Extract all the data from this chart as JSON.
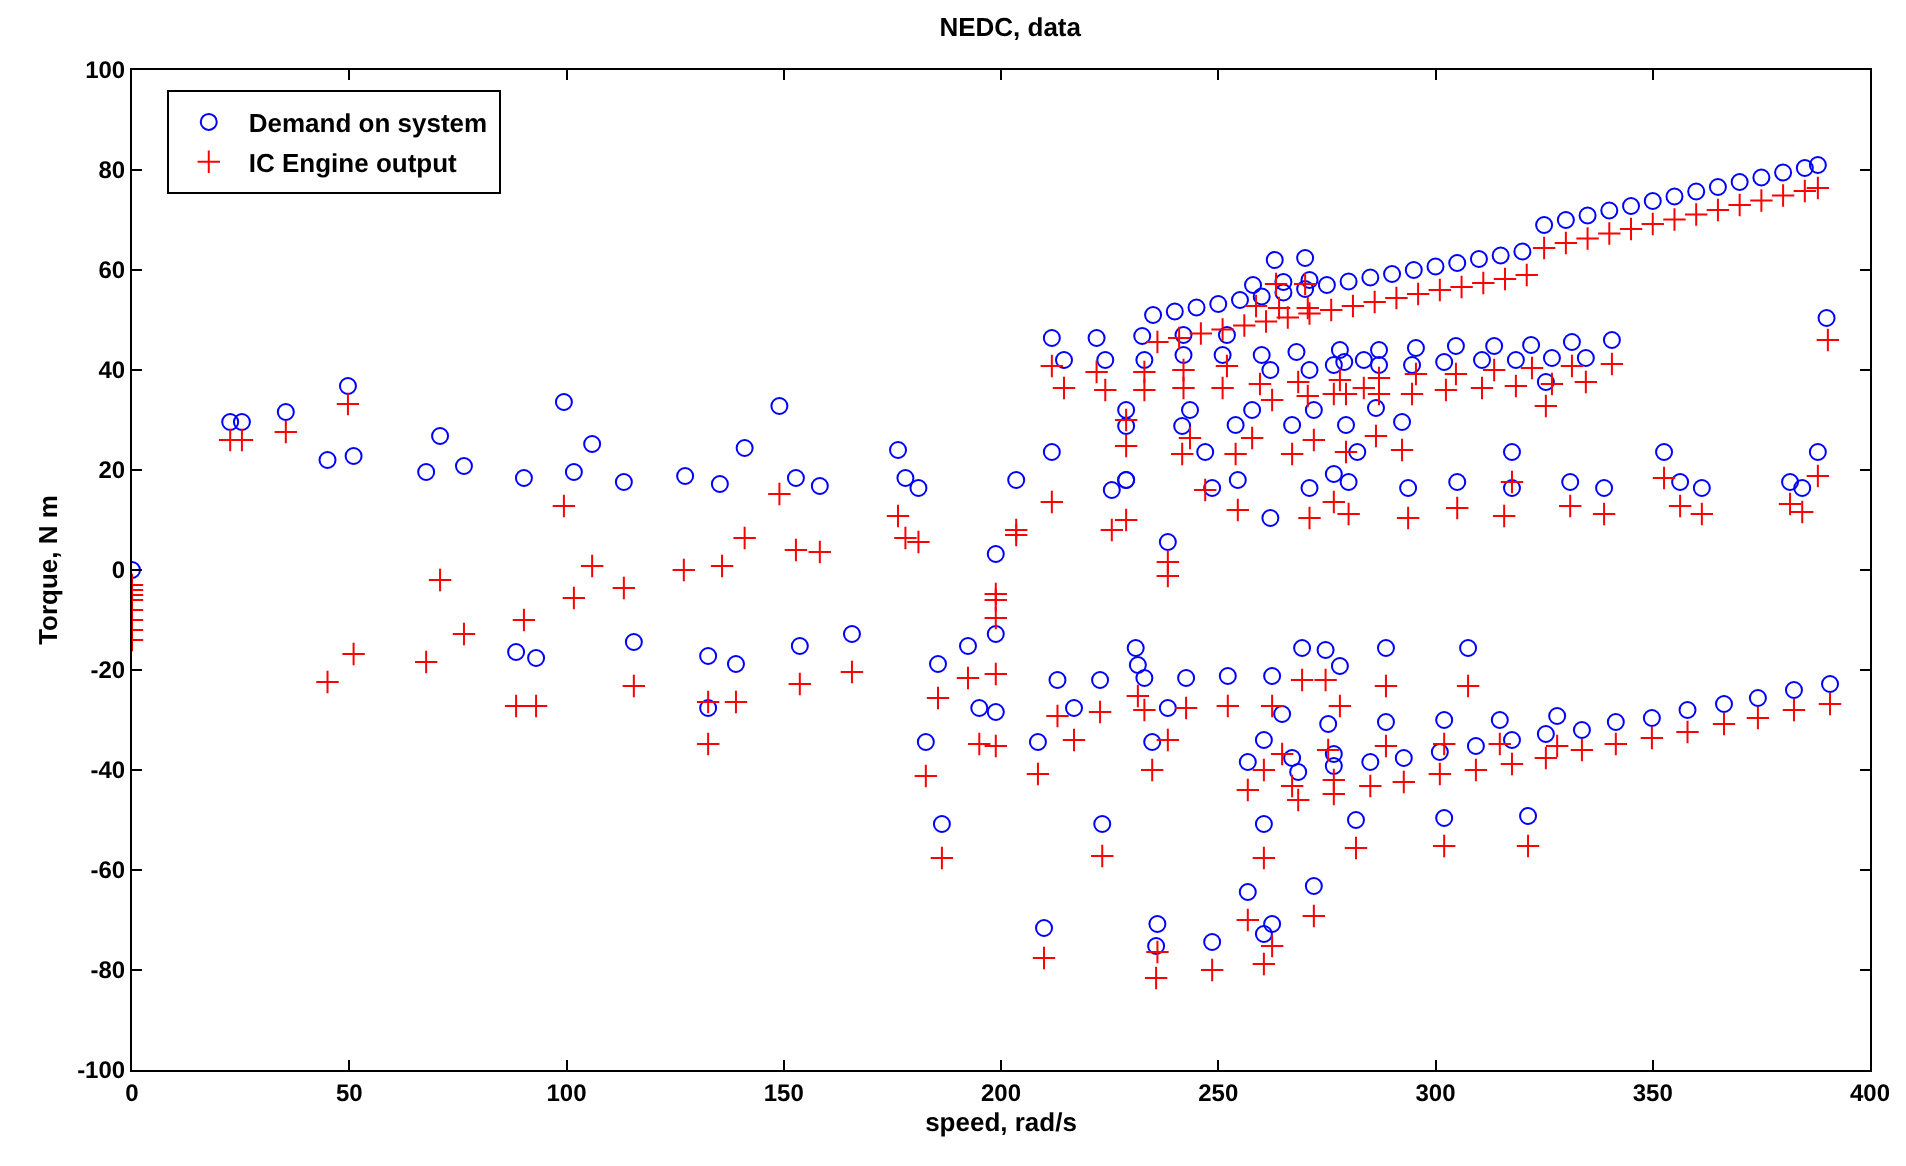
{
  "chart_data": {
    "type": "scatter",
    "title": "NEDC, data",
    "xlabel": "speed, rad/s",
    "ylabel": "Torque, N m",
    "xlim": [
      0,
      400
    ],
    "xticks": [
      0,
      50,
      100,
      150,
      200,
      250,
      300,
      350,
      400
    ],
    "ylim": [
      -100,
      100
    ],
    "yticks": [
      -100,
      -80,
      -60,
      -40,
      -20,
      0,
      20,
      40,
      60,
      80,
      100
    ],
    "grid": false,
    "legend": "top left",
    "series": [
      {
        "name": "Demand on system",
        "color": "#0000ff",
        "marker": "circle",
        "x": [
          0,
          22.6,
          25.3,
          35.4,
          49.7,
          45,
          51,
          70.9,
          67.7,
          76.4,
          90.2,
          99.4,
          101.7,
          105.9,
          113.2,
          127.3,
          135.3,
          141,
          149,
          152.8,
          158.3,
          176.3,
          178,
          181,
          198.8,
          203.5,
          211.7,
          211.7,
          214.5,
          222,
          224,
          225.5,
          228.8,
          228.8,
          228.8,
          228.8,
          238.4,
          241.7,
          243.5,
          247,
          248.6,
          254,
          254.5,
          257.8,
          262,
          267,
          271,
          272,
          276.6,
          279.4,
          280,
          282,
          286.3,
          292.3,
          293.7,
          305,
          317.6,
          317.6,
          331,
          338.8,
          352.6,
          356.3,
          361.3,
          381.6,
          384.4,
          388,
          232.5,
          233,
          242,
          242,
          251,
          252,
          260,
          262,
          268,
          271,
          276.6,
          278,
          279,
          283.5,
          287,
          287,
          294.6,
          295.5,
          302,
          304.7,
          310.7,
          313.5,
          318.5,
          322,
          325.4,
          326.8,
          331.4,
          334.6,
          340.6,
          390,
          258,
          263,
          265,
          270,
          271,
          235,
          240,
          245,
          250,
          255,
          260,
          265,
          270,
          275,
          280,
          285,
          290,
          295,
          300,
          305,
          310,
          315,
          320,
          325,
          330,
          335,
          340,
          345,
          350,
          355,
          360,
          365,
          370,
          375,
          380,
          385,
          388,
          88.4,
          93,
          115.5,
          132.6,
          132.6,
          139,
          153.7,
          165.7,
          182.7,
          185.5,
          186.4,
          192.4,
          195,
          198.8,
          198.8,
          208.5,
          209.9,
          213,
          216.8,
          222.8,
          223.3,
          231,
          231.5,
          233,
          234.8,
          235.7,
          236,
          238.4,
          242.6,
          248.6,
          252.2,
          256.8,
          256.8,
          260.5,
          260.5,
          260.5,
          262.4,
          262.4,
          264.7,
          267,
          268.4,
          269.3,
          272,
          274.7,
          275.3,
          276.6,
          276.6,
          278,
          281.7,
          285,
          288.6,
          288.6,
          292.7,
          301,
          302,
          302,
          307.5,
          309.3,
          314.8,
          317.6,
          321.3,
          325.4,
          328,
          333.7,
          341.5,
          349.8,
          358,
          366.4,
          374.2,
          382.5,
          390.8
        ],
        "values": [
          0,
          29.6,
          29.6,
          31.6,
          36.8,
          22,
          22.8,
          26.8,
          19.6,
          20.8,
          18.4,
          33.6,
          19.6,
          25.2,
          17.6,
          18.8,
          17.2,
          24.4,
          32.8,
          18.4,
          16.8,
          24,
          18.4,
          16.4,
          3.2,
          18,
          23.6,
          46.4,
          42,
          46.4,
          42,
          16,
          32,
          28.8,
          18,
          18,
          5.6,
          28.8,
          32,
          23.6,
          16.4,
          29,
          18,
          32,
          10.4,
          29,
          16.4,
          32,
          19.2,
          29,
          17.6,
          23.6,
          32.4,
          29.6,
          16.4,
          17.6,
          23.6,
          16.4,
          17.6,
          16.4,
          23.6,
          17.6,
          16.4,
          17.6,
          16.4,
          23.6,
          46.8,
          42,
          47,
          43,
          43,
          47,
          43,
          40,
          43.6,
          40,
          41,
          44,
          41.6,
          42,
          44,
          41,
          41,
          44.4,
          41.6,
          44.8,
          42,
          44.8,
          42,
          45,
          37.6,
          42.4,
          45.6,
          42.4,
          46,
          50.4,
          57,
          62,
          57.6,
          62.4,
          58,
          51,
          51.7,
          52.5,
          53.2,
          54,
          54.7,
          55.5,
          56.2,
          57,
          57.7,
          58.5,
          59.2,
          60,
          60.7,
          61.4,
          62.2,
          62.9,
          63.7,
          69,
          70,
          70.9,
          71.9,
          72.8,
          73.8,
          74.7,
          75.7,
          76.6,
          77.6,
          78.5,
          79.5,
          80.4,
          81,
          -16.4,
          -17.6,
          -14.4,
          -17.2,
          -27.6,
          -18.8,
          -15.2,
          -12.8,
          -34.4,
          -18.8,
          -50.8,
          -15.2,
          -27.6,
          -12.8,
          -28.4,
          -34.4,
          -71.6,
          -22,
          -27.6,
          -22,
          -50.8,
          -15.6,
          -19,
          -21.6,
          -34.4,
          -75.2,
          -70.8,
          -27.6,
          -21.6,
          -74.4,
          -21.2,
          -64.4,
          -38.4,
          -34,
          -50.8,
          -72.8,
          -70.8,
          -21.2,
          -28.8,
          -37.6,
          -40.4,
          -15.6,
          -63.2,
          -16,
          -30.8,
          -36.8,
          -39.2,
          -19.2,
          -50,
          -38.4,
          -15.6,
          -30.4,
          -37.6,
          -36.4,
          -30,
          -49.6,
          -15.6,
          -35.2,
          -30,
          -34,
          -49.2,
          -32.8,
          -29.2,
          -32,
          -30.4,
          -29.6,
          -28,
          -26.8,
          -25.6,
          -24,
          -22.8
        ]
      },
      {
        "name": "IC Engine output",
        "color": "#ff0000",
        "marker": "cross",
        "x": [
          0,
          0,
          0,
          0,
          0,
          0,
          0,
          0,
          22.6,
          25.3,
          35.4,
          49.7,
          45,
          51,
          70.9,
          67.7,
          76.4,
          90.2,
          88.4,
          93,
          99.4,
          101.7,
          105.9,
          113.2,
          115.5,
          127,
          132.6,
          132.6,
          135.8,
          139,
          141,
          149,
          152.8,
          153.7,
          158.3,
          165.7,
          176.3,
          178,
          181,
          182.7,
          185.5,
          186.4,
          192.4,
          195,
          198.8,
          198.8,
          198.8,
          198.8,
          198.8,
          203.5,
          203.5,
          208.5,
          209.9,
          211.7,
          211.7,
          213,
          214.5,
          216.8,
          222,
          222.8,
          223.3,
          224,
          225.5,
          228.8,
          228.8,
          228.8,
          231.5,
          233,
          233,
          233,
          234.8,
          235.7,
          236,
          238.4,
          238.4,
          238.4,
          241.7,
          242,
          242,
          242.6,
          243.5,
          247,
          248.6,
          251,
          252,
          252.2,
          254,
          254.5,
          256.8,
          256.8,
          257.8,
          258.7,
          259.6,
          260.5,
          260.5,
          260.5,
          262.4,
          262.4,
          262.4,
          263.3,
          264,
          264.7,
          267,
          267,
          268.4,
          268.4,
          269.3,
          270,
          270.6,
          270.6,
          271,
          272,
          272,
          274.7,
          275.3,
          276.6,
          276.6,
          276.6,
          276.6,
          278,
          278,
          279.4,
          279.4,
          280,
          281.7,
          283.5,
          285,
          286.3,
          287,
          287,
          288.6,
          288.6,
          292.3,
          292.7,
          293.7,
          294.6,
          295.5,
          301,
          302,
          302,
          302.4,
          304.7,
          305,
          307.5,
          309.3,
          310.7,
          313.5,
          314.8,
          315.8,
          317.6,
          317.6,
          318.5,
          321.3,
          322.2,
          325.4,
          325.4,
          326.8,
          328,
          331,
          331.4,
          333.7,
          334.6,
          338.8,
          340.6,
          341.5,
          349.8,
          352.6,
          356.3,
          358,
          361.3,
          366.4,
          374.2,
          381.6,
          382.5,
          384.4,
          388,
          390.3,
          390.8,
          236,
          241,
          246,
          251,
          256,
          261,
          266,
          271,
          276,
          281,
          286,
          291,
          296,
          301,
          306,
          311,
          316,
          321,
          325,
          330,
          335,
          340,
          345,
          350,
          355,
          360,
          365,
          370,
          375,
          380,
          385,
          388
        ],
        "values": [
          -3,
          -4,
          -5,
          -6,
          -8,
          -10,
          -12,
          -14,
          26,
          26,
          27.6,
          33.2,
          -22.4,
          -16.8,
          -2,
          -18.4,
          -12.8,
          -10,
          -27.2,
          -27.2,
          12.8,
          -5.6,
          0.8,
          -3.6,
          -23.2,
          0,
          -26.4,
          -34.8,
          0.8,
          -26.4,
          6.4,
          15.2,
          4,
          -22.8,
          3.6,
          -20.4,
          10.8,
          6.4,
          5.6,
          -41.2,
          -25.6,
          -57.6,
          -21.6,
          -34.8,
          -4.8,
          -6,
          -9.6,
          -20.8,
          -35.2,
          8,
          7,
          -40.8,
          -77.6,
          13.6,
          40.8,
          -29.2,
          36.4,
          -34,
          39.6,
          -28.4,
          -57.2,
          36,
          8,
          10,
          24.8,
          30,
          -25.2,
          -28,
          39.6,
          36,
          -40,
          -81.6,
          -76.4,
          1.6,
          -1.2,
          -34,
          23.2,
          40,
          36.4,
          -27.6,
          26.4,
          16,
          -80,
          36.4,
          40.8,
          -27.2,
          23.2,
          12,
          -44,
          -70,
          26.4,
          52.8,
          37.2,
          -57.6,
          -40,
          -78.8,
          -75.2,
          -27.2,
          34,
          57.2,
          52.4,
          -36.8,
          -43.2,
          23.2,
          -46,
          37.6,
          -22,
          57.2,
          52.4,
          34.8,
          10.4,
          26,
          -69.2,
          -22,
          -36,
          -42,
          -44.8,
          35.2,
          13.6,
          -27.2,
          38,
          35.2,
          23.6,
          11.2,
          -55.6,
          36.4,
          -43.2,
          26.8,
          38.4,
          35.2,
          -23.2,
          -35.2,
          24,
          -42.4,
          10.4,
          35.2,
          39.2,
          -40.8,
          -34.8,
          -55.2,
          36,
          39.2,
          12.4,
          -23.2,
          -40,
          36.4,
          40,
          -34.8,
          10.8,
          17.6,
          -38.8,
          36.8,
          -55.2,
          40.4,
          32.8,
          -37.6,
          37.2,
          -35.2,
          12.8,
          40.8,
          -36,
          37.6,
          11.2,
          41.2,
          -34.8,
          -33.6,
          18.4,
          12.8,
          -32.4,
          11.2,
          -30.8,
          -29.6,
          13.2,
          -28,
          11.6,
          18.8,
          46,
          -26.8,
          45.6,
          46.4,
          47.3,
          48.1,
          48.9,
          49.7,
          50.5,
          51.3,
          52,
          52.8,
          53.6,
          54.4,
          55.2,
          56,
          56.6,
          57.4,
          58.2,
          59,
          64.4,
          65.4,
          66.3,
          67.3,
          68.2,
          69.2,
          70.1,
          71.1,
          72,
          73,
          73.9,
          74.9,
          75.8,
          76.4
        ]
      }
    ]
  }
}
